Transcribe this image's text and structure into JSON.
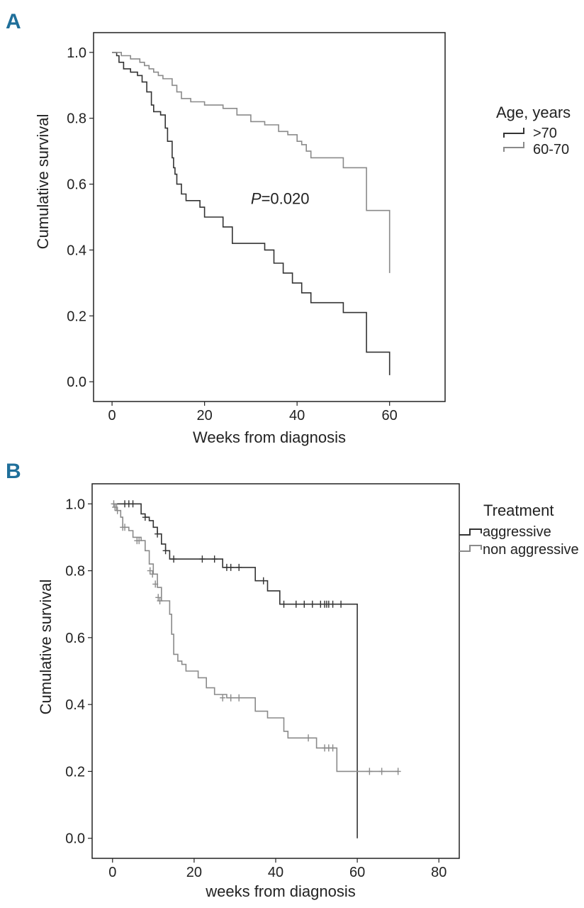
{
  "colors": {
    "dark": "#333333",
    "light": "#8a8a8a",
    "panel_letter": "#1f6f9a"
  },
  "chart_data": [
    {
      "panel": "A",
      "type": "line",
      "step": true,
      "xlabel": "Weeks from diagnosis",
      "ylabel": "Cumulative survival",
      "xlim": [
        -4,
        72
      ],
      "ylim": [
        -0.06,
        1.06
      ],
      "xticks": [
        0,
        20,
        40,
        60
      ],
      "yticks": [
        0.0,
        0.2,
        0.4,
        0.6,
        0.8,
        1.0
      ],
      "xtick_labels": [
        "0",
        "20",
        "40",
        "60"
      ],
      "ytick_labels": [
        "0.0",
        "0.2",
        "0.4",
        "0.6",
        "0.8",
        "1.0"
      ],
      "legend_title": "Age, years",
      "annotation": {
        "italic": "P",
        "rest": "=0.020",
        "x": 30,
        "y": 0.54
      },
      "series": [
        {
          "name": ">70",
          "color": "dark",
          "points": [
            [
              0,
              1.0
            ],
            [
              1,
              0.99
            ],
            [
              1.5,
              0.97
            ],
            [
              2.5,
              0.95
            ],
            [
              4,
              0.94
            ],
            [
              5.5,
              0.93
            ],
            [
              6.5,
              0.91
            ],
            [
              7.5,
              0.88
            ],
            [
              8.5,
              0.84
            ],
            [
              9,
              0.82
            ],
            [
              10.5,
              0.81
            ],
            [
              11.5,
              0.77
            ],
            [
              12,
              0.73
            ],
            [
              13,
              0.68
            ],
            [
              13.3,
              0.65
            ],
            [
              13.6,
              0.63
            ],
            [
              14,
              0.6
            ],
            [
              15,
              0.57
            ],
            [
              16,
              0.55
            ],
            [
              19,
              0.53
            ],
            [
              20,
              0.5
            ],
            [
              24,
              0.47
            ],
            [
              26,
              0.42
            ],
            [
              33,
              0.4
            ],
            [
              35,
              0.36
            ],
            [
              37,
              0.33
            ],
            [
              39,
              0.3
            ],
            [
              41,
              0.27
            ],
            [
              43,
              0.24
            ],
            [
              50,
              0.21
            ],
            [
              55,
              0.09
            ],
            [
              60,
              0.02
            ]
          ]
        },
        {
          "name": "60-70",
          "color": "light",
          "points": [
            [
              0,
              1.0
            ],
            [
              2,
              0.99
            ],
            [
              4,
              0.98
            ],
            [
              6,
              0.97
            ],
            [
              7,
              0.96
            ],
            [
              8,
              0.95
            ],
            [
              9,
              0.94
            ],
            [
              10,
              0.93
            ],
            [
              11,
              0.92
            ],
            [
              13,
              0.9
            ],
            [
              14,
              0.88
            ],
            [
              15,
              0.86
            ],
            [
              17,
              0.85
            ],
            [
              20,
              0.84
            ],
            [
              24,
              0.83
            ],
            [
              27,
              0.81
            ],
            [
              30,
              0.79
            ],
            [
              33,
              0.78
            ],
            [
              36,
              0.76
            ],
            [
              38,
              0.75
            ],
            [
              40,
              0.73
            ],
            [
              41,
              0.72
            ],
            [
              42,
              0.7
            ],
            [
              43,
              0.68
            ],
            [
              50,
              0.65
            ],
            [
              55,
              0.52
            ],
            [
              60,
              0.33
            ]
          ]
        }
      ]
    },
    {
      "panel": "B",
      "type": "line",
      "step": true,
      "xlabel": "weeks from diagnosis",
      "ylabel": "Cumulative survival",
      "xlim": [
        -5,
        85
      ],
      "ylim": [
        -0.06,
        1.06
      ],
      "xticks": [
        0,
        20,
        40,
        60,
        80
      ],
      "yticks": [
        0.0,
        0.2,
        0.4,
        0.6,
        0.8,
        1.0
      ],
      "xtick_labels": [
        "0",
        "20",
        "40",
        "60",
        "80"
      ],
      "ytick_labels": [
        "0.0",
        "0.2",
        "0.4",
        "0.6",
        "0.8",
        "1.0"
      ],
      "legend_title": "Treatment",
      "series": [
        {
          "name": "aggressive",
          "color": "dark",
          "points": [
            [
              0,
              1.0
            ],
            [
              7,
              0.97
            ],
            [
              8,
              0.96
            ],
            [
              9,
              0.95
            ],
            [
              10,
              0.93
            ],
            [
              11,
              0.91
            ],
            [
              12,
              0.88
            ],
            [
              13,
              0.86
            ],
            [
              14,
              0.835
            ],
            [
              27,
              0.81
            ],
            [
              35,
              0.77
            ],
            [
              38,
              0.74
            ],
            [
              41,
              0.7
            ],
            [
              60,
              0.7
            ],
            [
              60,
              0.0
            ]
          ],
          "censored": [
            [
              3,
              1.0
            ],
            [
              4,
              1.0
            ],
            [
              5,
              1.0
            ],
            [
              8,
              0.96
            ],
            [
              11,
              0.91
            ],
            [
              13,
              0.86
            ],
            [
              15,
              0.835
            ],
            [
              22,
              0.835
            ],
            [
              25,
              0.835
            ],
            [
              28,
              0.81
            ],
            [
              29,
              0.81
            ],
            [
              31,
              0.81
            ],
            [
              37,
              0.77
            ],
            [
              42,
              0.7
            ],
            [
              45,
              0.7
            ],
            [
              47,
              0.7
            ],
            [
              49,
              0.7
            ],
            [
              51,
              0.7
            ],
            [
              52,
              0.7
            ],
            [
              52.5,
              0.7
            ],
            [
              53,
              0.7
            ],
            [
              54,
              0.7
            ],
            [
              56,
              0.7
            ]
          ]
        },
        {
          "name": "non aggressive",
          "color": "light",
          "points": [
            [
              0,
              1.0
            ],
            [
              1,
              0.98
            ],
            [
              2,
              0.96
            ],
            [
              2.5,
              0.93
            ],
            [
              4,
              0.92
            ],
            [
              5,
              0.9
            ],
            [
              7,
              0.89
            ],
            [
              8,
              0.86
            ],
            [
              9,
              0.82
            ],
            [
              10,
              0.79
            ],
            [
              11,
              0.75
            ],
            [
              12,
              0.71
            ],
            [
              14,
              0.67
            ],
            [
              14.5,
              0.61
            ],
            [
              15,
              0.55
            ],
            [
              16,
              0.53
            ],
            [
              17,
              0.52
            ],
            [
              18,
              0.5
            ],
            [
              21,
              0.48
            ],
            [
              23,
              0.45
            ],
            [
              25,
              0.43
            ],
            [
              28,
              0.42
            ],
            [
              35,
              0.38
            ],
            [
              38,
              0.36
            ],
            [
              42,
              0.32
            ],
            [
              43,
              0.3
            ],
            [
              50,
              0.27
            ],
            [
              55,
              0.2
            ],
            [
              70,
              0.2
            ]
          ],
          "censored": [
            [
              0.3,
              1.0
            ],
            [
              0.6,
              0.99
            ],
            [
              1.2,
              0.98
            ],
            [
              2.5,
              0.93
            ],
            [
              3,
              0.93
            ],
            [
              6,
              0.89
            ],
            [
              6.5,
              0.89
            ],
            [
              9.2,
              0.8
            ],
            [
              9.8,
              0.79
            ],
            [
              10.5,
              0.76
            ],
            [
              11.2,
              0.72
            ],
            [
              11.6,
              0.71
            ],
            [
              27,
              0.42
            ],
            [
              29,
              0.42
            ],
            [
              31,
              0.42
            ],
            [
              48,
              0.3
            ],
            [
              52,
              0.27
            ],
            [
              53,
              0.27
            ],
            [
              54,
              0.27
            ],
            [
              63,
              0.2
            ],
            [
              66,
              0.2
            ],
            [
              70,
              0.2
            ]
          ]
        }
      ]
    }
  ]
}
